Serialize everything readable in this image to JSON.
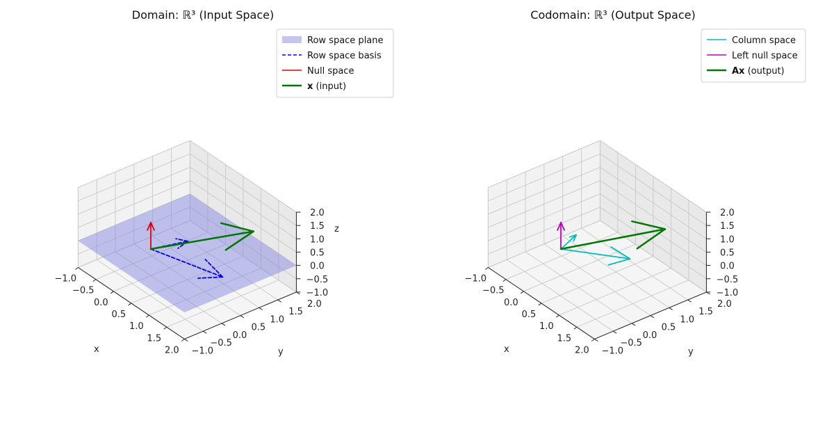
{
  "chart_data": [
    {
      "type": "vector3d",
      "title": "Domain: ℝ³ (Input Space)",
      "xlabel": "x",
      "ylabel": "y",
      "zlabel": "z",
      "xlim": [
        -1,
        2
      ],
      "ylim": [
        -1,
        2
      ],
      "zlim": [
        -1,
        2
      ],
      "x_ticks": [
        "−1.0",
        "−0.5",
        "0.0",
        "0.5",
        "1.0",
        "1.5",
        "2.0"
      ],
      "y_ticks": [
        "−1.0",
        "−0.5",
        "0.0",
        "0.5",
        "1.0",
        "1.5",
        "2.0"
      ],
      "z_ticks": [
        "−1.0",
        "−0.5",
        "0.0",
        "0.5",
        "1.0",
        "1.5",
        "2.0"
      ],
      "grid": true,
      "legend_position": "top-right",
      "legend": [
        {
          "label": "Row space plane",
          "style": "patch",
          "color": "#7f7fdf",
          "bold": ""
        },
        {
          "label": "Row space basis",
          "style": "dashed",
          "color": "#0000ee",
          "bold": ""
        },
        {
          "label": "Null space",
          "style": "solid",
          "color": "#dd0000",
          "bold": ""
        },
        {
          "label": " (input)",
          "style": "solid-thick",
          "color": "#007700",
          "bold": "x"
        }
      ],
      "plane": {
        "color": "#7f7fdf",
        "opacity": 0.45,
        "z": 0
      },
      "vectors": [
        {
          "name": "Row space basis",
          "from": [
            0,
            0,
            0
          ],
          "to": [
            1.5,
            0.5,
            0
          ],
          "color": "#0000ee",
          "dashed": true,
          "width": 1.8
        },
        {
          "name": "Row space basis",
          "from": [
            0,
            0,
            0
          ],
          "to": [
            0.2,
            0.8,
            0
          ],
          "color": "#0000ee",
          "dashed": true,
          "width": 1.8
        },
        {
          "name": "Null space",
          "from": [
            0,
            0,
            0
          ],
          "to": [
            0,
            0,
            1
          ],
          "color": "#dd0000",
          "dashed": false,
          "width": 1.8
        },
        {
          "name": "x (input)",
          "from": [
            0,
            0,
            0
          ],
          "to": [
            1.0,
            1.8,
            0.5
          ],
          "color": "#007700",
          "dashed": false,
          "width": 2.5
        }
      ]
    },
    {
      "type": "vector3d",
      "title": "Codomain: ℝ³ (Output Space)",
      "xlabel": "x",
      "ylabel": "y",
      "zlabel": "",
      "xlim": [
        -1,
        2
      ],
      "ylim": [
        -1,
        2
      ],
      "zlim": [
        -1,
        2
      ],
      "x_ticks": [
        "−1.0",
        "−0.5",
        "0.0",
        "0.5",
        "1.0",
        "1.5",
        "2.0"
      ],
      "y_ticks": [
        "−1.0",
        "−0.5",
        "0.0",
        "0.5",
        "1.0",
        "1.5",
        "2.0"
      ],
      "z_ticks": [
        "−1.0",
        "−0.5",
        "0.0",
        "0.5",
        "1.0",
        "1.5",
        "2.0"
      ],
      "grid": true,
      "legend_position": "top-right",
      "legend": [
        {
          "label": "Column space",
          "style": "solid",
          "color": "#00bbbb",
          "bold": ""
        },
        {
          "label": "Left null space",
          "style": "solid",
          "color": "#bb00bb",
          "bold": ""
        },
        {
          "label": " (output)",
          "style": "solid-thick",
          "color": "#007700",
          "bold": "Ax"
        }
      ],
      "vectors": [
        {
          "name": "Column space",
          "from": [
            0,
            0,
            0
          ],
          "to": [
            1.0,
            0.9,
            0
          ],
          "color": "#00bbbb",
          "dashed": false,
          "width": 1.8
        },
        {
          "name": "Column space",
          "from": [
            0,
            0,
            0
          ],
          "to": [
            -0.2,
            0.6,
            0
          ],
          "color": "#00bbbb",
          "dashed": false,
          "width": 1.8
        },
        {
          "name": "Left null space",
          "from": [
            0,
            0,
            0
          ],
          "to": [
            0,
            0,
            1
          ],
          "color": "#bb00bb",
          "dashed": false,
          "width": 1.8
        },
        {
          "name": "Ax (output)",
          "from": [
            0,
            0,
            0
          ],
          "to": [
            0.2,
            2.6,
            -0.6
          ],
          "color": "#007700",
          "dashed": false,
          "width": 2.5
        }
      ]
    }
  ]
}
